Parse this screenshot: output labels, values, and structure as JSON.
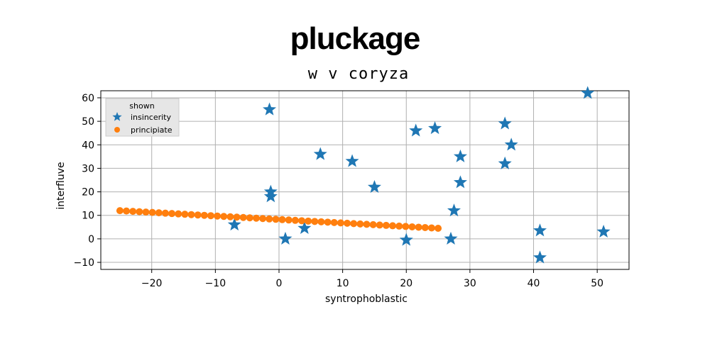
{
  "chart_data": {
    "type": "scatter",
    "title": "pluckage",
    "subtitle": "w v coryza",
    "xlabel": "syntrophoblastic",
    "ylabel": "interfluve",
    "xlim": [
      -28,
      55
    ],
    "ylim": [
      -13,
      63
    ],
    "xticks": [
      -20,
      -10,
      0,
      10,
      20,
      30,
      40,
      50
    ],
    "yticks": [
      -10,
      0,
      10,
      20,
      30,
      40,
      50,
      60
    ],
    "grid": true,
    "legend": {
      "title": "shown",
      "placement": "top-left"
    },
    "series": [
      {
        "name": "insincerity",
        "marker": "star",
        "color": "#1f77b4",
        "points": [
          [
            -1.5,
            55
          ],
          [
            -1.3,
            20
          ],
          [
            -1.3,
            18
          ],
          [
            -7,
            6
          ],
          [
            1,
            0
          ],
          [
            4,
            4.5
          ],
          [
            6.5,
            36
          ],
          [
            11.5,
            33
          ],
          [
            15,
            22
          ],
          [
            20,
            -0.5
          ],
          [
            21.5,
            46
          ],
          [
            24.5,
            47
          ],
          [
            27,
            0
          ],
          [
            27.5,
            12
          ],
          [
            28.5,
            35
          ],
          [
            28.5,
            24
          ],
          [
            35.5,
            49
          ],
          [
            36.5,
            40
          ],
          [
            35.5,
            32
          ],
          [
            41,
            3.5
          ],
          [
            41,
            -8
          ],
          [
            48.5,
            62
          ],
          [
            51,
            3
          ]
        ]
      },
      {
        "name": "principiate",
        "marker": "circle",
        "color": "#ff7f0e",
        "line": {
          "x_start": -25,
          "x_end": 25,
          "y_start": 12,
          "y_end": 4.5,
          "count": 50
        }
      }
    ]
  }
}
